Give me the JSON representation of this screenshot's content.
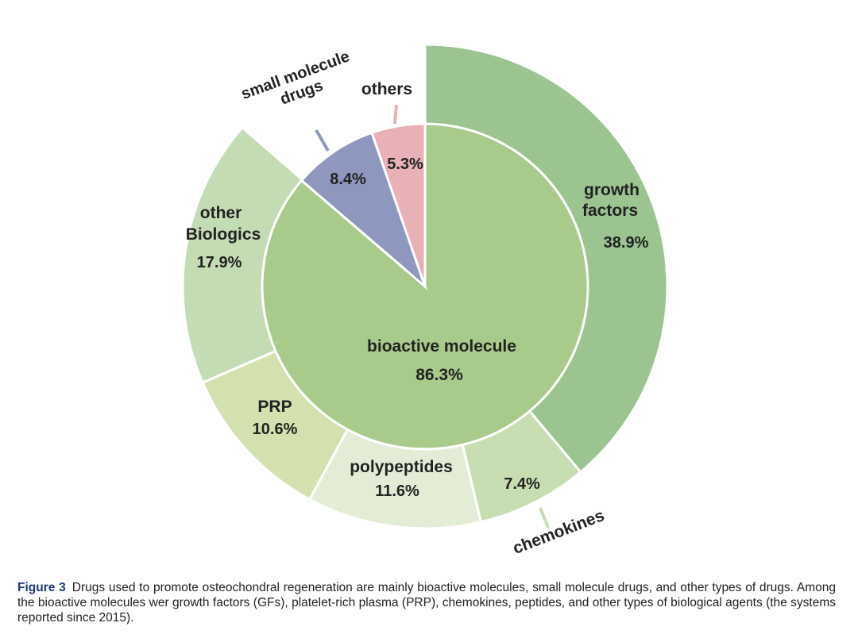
{
  "chart_data": {
    "type": "pie",
    "subtype": "nested-donut",
    "inner": [
      {
        "name": "bioactive molecule",
        "value": 86.3,
        "label": "86.3%",
        "color": "#a8ca8a"
      },
      {
        "name": "small molecule drugs",
        "value": 8.4,
        "label": "8.4%",
        "color": "#8e97bd"
      },
      {
        "name": "others",
        "value": 5.3,
        "label": "5.3%",
        "color": "#e7b1b7"
      }
    ],
    "outer": [
      {
        "name": "growth factors",
        "value": 38.9,
        "label": "38.9%",
        "color": "#9bc490"
      },
      {
        "name": "chemokines",
        "value": 7.4,
        "label": "7.4%",
        "color": "#c7deb3"
      },
      {
        "name": "polypeptides",
        "value": 11.6,
        "label": "11.6%",
        "color": "#e3edd6"
      },
      {
        "name": "PRP",
        "value": 10.6,
        "label": "10.6%",
        "color": "#d2e1ad"
      },
      {
        "name": "other Biologics",
        "value": 17.9,
        "label": "17.9%",
        "color": "#c4dcb4"
      }
    ]
  },
  "caption": {
    "figure_label": "Figure 3",
    "text": "Drugs used to promote osteochondral regeneration are mainly bioactive molecules, small molecule drugs, and other types of drugs. Among the bioactive molecules wer growth factors (GFs), platelet-rich plasma (PRP), chemokines, peptides, and other types of biological agents (the systems reported since 2015)."
  }
}
